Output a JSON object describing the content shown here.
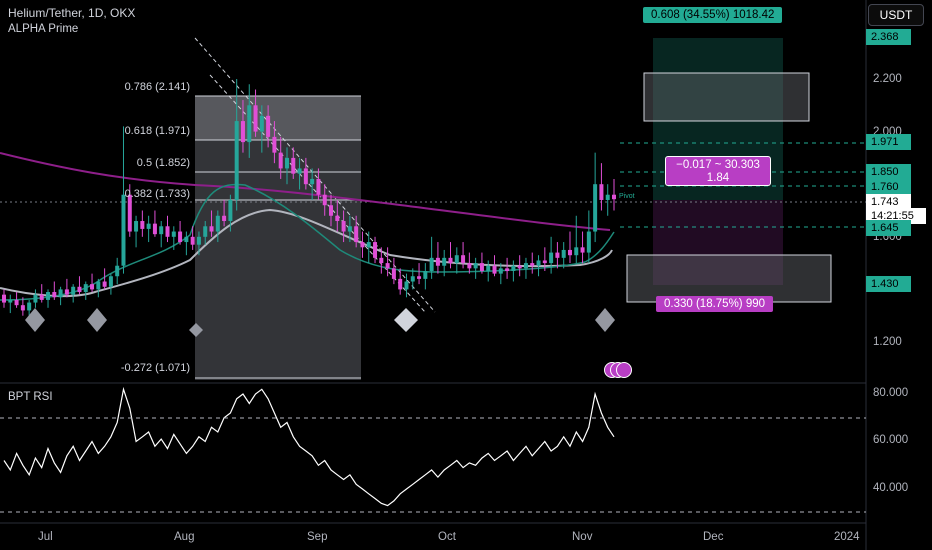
{
  "header": {
    "symbol_line": "Helium/Tether, 1D, OKX",
    "indicator_name": "ALPHA Prime",
    "currency_button": "USDT"
  },
  "price_axis": {
    "ticks": [
      "2.200",
      "2.000",
      "1.600",
      "1.200"
    ],
    "labels": [
      {
        "text": "2.368",
        "bg": "#22ab94",
        "fg": "#000000"
      },
      {
        "text": "1.971",
        "bg": "#22ab94",
        "fg": "#000000"
      },
      {
        "text": "1.850",
        "bg": "#22ab94",
        "fg": "#000000"
      },
      {
        "text": "1.760",
        "bg": "#22ab94",
        "fg": "#000000"
      },
      {
        "text": "1.743",
        "bg": "#ffffff",
        "fg": "#000000"
      },
      {
        "text": "14:21:55",
        "bg": "#ffffff",
        "fg": "#000000"
      },
      {
        "text": "1.645",
        "bg": "#22ab94",
        "fg": "#000000"
      },
      {
        "text": "1.430",
        "bg": "#22ab94",
        "fg": "#000000"
      }
    ]
  },
  "time_axis": {
    "ticks": [
      "Jul",
      "Aug",
      "Sep",
      "Oct",
      "Nov",
      "Dec",
      "2024"
    ]
  },
  "fibonacci": {
    "levels": [
      "0.786 (2.141)",
      "0.618 (1.971)",
      "0.5 (1.852)",
      "0.382 (1.733)",
      "-0.272 (1.071)"
    ]
  },
  "position_tool": {
    "target_label": "0.608 (34.55%) 1018.42",
    "stop_label": "0.330 (18.75%) 990",
    "risk_reward_line1": "−0.017 ~ 30.303",
    "risk_reward_line2": "1.84",
    "pivot_text": "Pivot"
  },
  "rsi_panel": {
    "title": "BPT RSI",
    "ticks": [
      "80.000",
      "60.000",
      "40.000"
    ]
  },
  "colors": {
    "up": "#26a69a",
    "down": "#e04fd6",
    "accent_green": "#22ab94",
    "accent_purple": "#b83ec4",
    "ema_teal": "#1e8a7a",
    "ma_gray": "#b2b5be",
    "ma_purple": "#8e1f8a"
  },
  "chart_data": {
    "type": "candlestick",
    "title": "Helium/Tether, 1D, OKX",
    "x_ticks": [
      "Jul",
      "Aug",
      "Sep",
      "Oct",
      "Nov",
      "Dec",
      "2024"
    ],
    "y_ticks": [
      1.2,
      1.6,
      2.0,
      2.2
    ],
    "candles_ohlc": [
      [
        1.38,
        1.4,
        1.33,
        1.35
      ],
      [
        1.35,
        1.38,
        1.31,
        1.36
      ],
      [
        1.36,
        1.39,
        1.33,
        1.34
      ],
      [
        1.34,
        1.37,
        1.3,
        1.32
      ],
      [
        1.32,
        1.36,
        1.3,
        1.35
      ],
      [
        1.35,
        1.4,
        1.33,
        1.38
      ],
      [
        1.38,
        1.42,
        1.35,
        1.36
      ],
      [
        1.36,
        1.4,
        1.33,
        1.39
      ],
      [
        1.39,
        1.43,
        1.36,
        1.37
      ],
      [
        1.37,
        1.41,
        1.34,
        1.4
      ],
      [
        1.4,
        1.44,
        1.37,
        1.38
      ],
      [
        1.38,
        1.42,
        1.35,
        1.41
      ],
      [
        1.41,
        1.45,
        1.38,
        1.39
      ],
      [
        1.39,
        1.43,
        1.36,
        1.42
      ],
      [
        1.42,
        1.46,
        1.39,
        1.4
      ],
      [
        1.4,
        1.44,
        1.37,
        1.43
      ],
      [
        1.43,
        1.48,
        1.4,
        1.41
      ],
      [
        1.41,
        1.46,
        1.38,
        1.45
      ],
      [
        1.45,
        1.52,
        1.42,
        1.49
      ],
      [
        1.49,
        2.02,
        1.46,
        1.76
      ],
      [
        1.76,
        1.8,
        1.6,
        1.62
      ],
      [
        1.62,
        1.68,
        1.56,
        1.66
      ],
      [
        1.66,
        1.7,
        1.6,
        1.63
      ],
      [
        1.63,
        1.68,
        1.58,
        1.65
      ],
      [
        1.65,
        1.7,
        1.6,
        1.61
      ],
      [
        1.61,
        1.66,
        1.56,
        1.64
      ],
      [
        1.64,
        1.68,
        1.58,
        1.6
      ],
      [
        1.6,
        1.64,
        1.55,
        1.62
      ],
      [
        1.62,
        1.66,
        1.57,
        1.58
      ],
      [
        1.58,
        1.62,
        1.53,
        1.6
      ],
      [
        1.6,
        1.64,
        1.55,
        1.57
      ],
      [
        1.57,
        1.62,
        1.53,
        1.6
      ],
      [
        1.6,
        1.66,
        1.57,
        1.64
      ],
      [
        1.64,
        1.7,
        1.6,
        1.62
      ],
      [
        1.62,
        1.7,
        1.58,
        1.68
      ],
      [
        1.68,
        1.74,
        1.64,
        1.66
      ],
      [
        1.66,
        1.76,
        1.62,
        1.74
      ],
      [
        1.74,
        2.2,
        1.7,
        2.04
      ],
      [
        2.04,
        2.12,
        1.92,
        1.96
      ],
      [
        1.96,
        2.18,
        1.9,
        2.1
      ],
      [
        2.1,
        2.16,
        1.98,
        2.0
      ],
      [
        2.0,
        2.1,
        1.92,
        2.06
      ],
      [
        2.06,
        2.1,
        1.94,
        1.98
      ],
      [
        1.98,
        2.04,
        1.88,
        1.92
      ],
      [
        1.92,
        1.98,
        1.82,
        1.86
      ],
      [
        1.86,
        1.94,
        1.8,
        1.9
      ],
      [
        1.9,
        1.94,
        1.82,
        1.84
      ],
      [
        1.84,
        1.9,
        1.78,
        1.86
      ],
      [
        1.86,
        1.9,
        1.78,
        1.8
      ],
      [
        1.8,
        1.86,
        1.74,
        1.82
      ],
      [
        1.82,
        1.86,
        1.74,
        1.76
      ],
      [
        1.76,
        1.8,
        1.68,
        1.72
      ],
      [
        1.72,
        1.76,
        1.64,
        1.68
      ],
      [
        1.68,
        1.74,
        1.62,
        1.66
      ],
      [
        1.66,
        1.7,
        1.58,
        1.62
      ],
      [
        1.62,
        1.68,
        1.58,
        1.64
      ],
      [
        1.64,
        1.68,
        1.56,
        1.58
      ],
      [
        1.58,
        1.62,
        1.52,
        1.56
      ],
      [
        1.56,
        1.62,
        1.5,
        1.58
      ],
      [
        1.58,
        1.6,
        1.5,
        1.52
      ],
      [
        1.52,
        1.56,
        1.46,
        1.5
      ],
      [
        1.5,
        1.56,
        1.45,
        1.48
      ],
      [
        1.48,
        1.52,
        1.42,
        1.44
      ],
      [
        1.44,
        1.48,
        1.38,
        1.4
      ],
      [
        1.4,
        1.46,
        1.37,
        1.43
      ],
      [
        1.43,
        1.48,
        1.4,
        1.45
      ],
      [
        1.45,
        1.5,
        1.42,
        1.44
      ],
      [
        1.44,
        1.5,
        1.4,
        1.47
      ],
      [
        1.47,
        1.6,
        1.44,
        1.52
      ],
      [
        1.52,
        1.58,
        1.46,
        1.49
      ],
      [
        1.49,
        1.55,
        1.45,
        1.52
      ],
      [
        1.52,
        1.58,
        1.48,
        1.5
      ],
      [
        1.5,
        1.56,
        1.46,
        1.53
      ],
      [
        1.53,
        1.58,
        1.48,
        1.5
      ],
      [
        1.5,
        1.54,
        1.46,
        1.48
      ],
      [
        1.48,
        1.52,
        1.44,
        1.5
      ],
      [
        1.5,
        1.54,
        1.46,
        1.47
      ],
      [
        1.47,
        1.51,
        1.43,
        1.49
      ],
      [
        1.49,
        1.53,
        1.45,
        1.46
      ],
      [
        1.46,
        1.5,
        1.42,
        1.48
      ],
      [
        1.48,
        1.52,
        1.44,
        1.47
      ],
      [
        1.47,
        1.51,
        1.43,
        1.49
      ],
      [
        1.49,
        1.53,
        1.45,
        1.48
      ],
      [
        1.48,
        1.52,
        1.44,
        1.5
      ],
      [
        1.5,
        1.54,
        1.46,
        1.49
      ],
      [
        1.49,
        1.53,
        1.45,
        1.51
      ],
      [
        1.51,
        1.56,
        1.47,
        1.5
      ],
      [
        1.5,
        1.6,
        1.46,
        1.54
      ],
      [
        1.54,
        1.58,
        1.48,
        1.52
      ],
      [
        1.52,
        1.58,
        1.48,
        1.55
      ],
      [
        1.55,
        1.62,
        1.5,
        1.53
      ],
      [
        1.53,
        1.68,
        1.5,
        1.56
      ],
      [
        1.56,
        1.62,
        1.5,
        1.54
      ],
      [
        1.54,
        1.7,
        1.5,
        1.62
      ],
      [
        1.62,
        1.92,
        1.58,
        1.8
      ],
      [
        1.8,
        1.88,
        1.7,
        1.74
      ],
      [
        1.74,
        1.8,
        1.68,
        1.76
      ],
      [
        1.76,
        1.82,
        1.7,
        1.743
      ]
    ],
    "fib_levels": [
      {
        "ratio": 0.786,
        "price": 2.141
      },
      {
        "ratio": 0.618,
        "price": 1.971
      },
      {
        "ratio": 0.5,
        "price": 1.852
      },
      {
        "ratio": 0.382,
        "price": 1.733
      },
      {
        "ratio": -0.272,
        "price": 1.071
      }
    ],
    "current_price": 1.743,
    "rsi_values": [
      52,
      48,
      55,
      50,
      46,
      53,
      49,
      57,
      51,
      47,
      54,
      58,
      52,
      56,
      60,
      55,
      58,
      62,
      68,
      82,
      74,
      60,
      62,
      64,
      58,
      61,
      57,
      63,
      59,
      55,
      58,
      62,
      60,
      66,
      64,
      70,
      72,
      78,
      80,
      76,
      80,
      82,
      78,
      72,
      66,
      68,
      62,
      58,
      56,
      54,
      50,
      52,
      48,
      46,
      44,
      46,
      42,
      40,
      38,
      36,
      34,
      33,
      35,
      38,
      40,
      42,
      44,
      46,
      48,
      45,
      48,
      50,
      52,
      49,
      51,
      50,
      53,
      55,
      52,
      54,
      56,
      52,
      55,
      58,
      54,
      57,
      60,
      56,
      58,
      62,
      58,
      64,
      60,
      66,
      80,
      72,
      66,
      62
    ],
    "rsi_ylim": [
      30,
      85
    ]
  }
}
